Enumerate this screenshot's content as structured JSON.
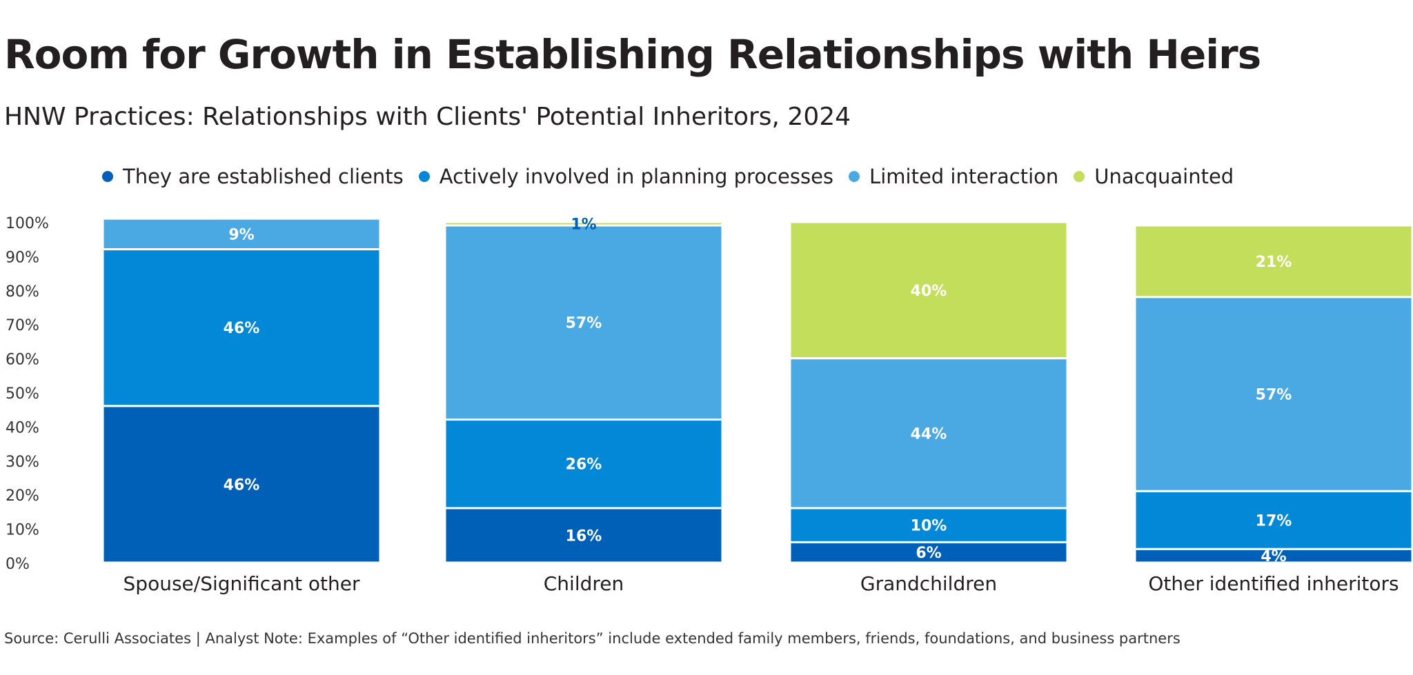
{
  "title": "Room for Growth in Establishing Relationships with Heirs",
  "subtitle": "HNW Practices: Relationships with Clients' Potential Inheritors, 2024",
  "source": "Source: Cerulli Associates | Analyst Note: Examples of “Other identified inheritors” include extended family members, friends, foundations, and business partners",
  "chart_data": {
    "type": "bar",
    "stacked": true,
    "categories": [
      "Spouse/Significant other",
      "Children",
      "Grandchildren",
      "Other identified inheritors"
    ],
    "series": [
      {
        "name": "They are established clients",
        "color": "#0060b8",
        "values": [
          46,
          16,
          6,
          4
        ]
      },
      {
        "name": "Actively involved in planning processes",
        "color": "#0388d8",
        "values": [
          46,
          26,
          10,
          17
        ]
      },
      {
        "name": "Limited interaction",
        "color": "#4aa8e2",
        "values": [
          9,
          57,
          44,
          57
        ]
      },
      {
        "name": "Unacquainted",
        "color": "#c2de5a",
        "values": [
          0,
          1,
          40,
          21
        ]
      }
    ],
    "y_ticks": [
      "0%",
      "10%",
      "20%",
      "30%",
      "40%",
      "50%",
      "60%",
      "70%",
      "80%",
      "90%",
      "100%"
    ],
    "ylim": [
      0,
      100
    ],
    "grid": false,
    "legend_position": "top"
  }
}
